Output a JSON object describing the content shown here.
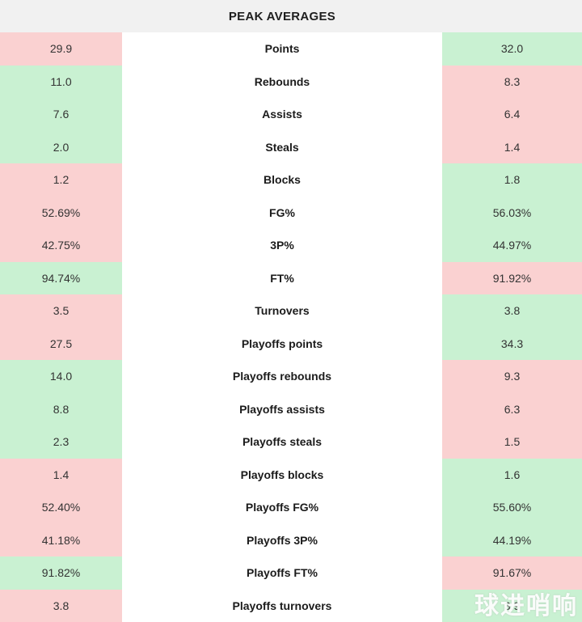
{
  "header": {
    "title": "PEAK AVERAGES"
  },
  "colors": {
    "pink": "#fad1d1",
    "green": "#c9f1d2",
    "header_bg": "#f1f1f1",
    "label_text": "#1b1b1b",
    "value_text": "#333333"
  },
  "chart_data": {
    "type": "table",
    "title": "PEAK AVERAGES",
    "columns": [
      "left_player_value",
      "stat_label",
      "right_player_value"
    ],
    "color_legend": {
      "green": "better value",
      "pink": "worse value"
    },
    "rows": [
      {
        "label": "Points",
        "left": {
          "value": "29.9",
          "color": "pink"
        },
        "right": {
          "value": "32.0",
          "color": "green"
        }
      },
      {
        "label": "Rebounds",
        "left": {
          "value": "11.0",
          "color": "green"
        },
        "right": {
          "value": "8.3",
          "color": "pink"
        }
      },
      {
        "label": "Assists",
        "left": {
          "value": "7.6",
          "color": "green"
        },
        "right": {
          "value": "6.4",
          "color": "pink"
        }
      },
      {
        "label": "Steals",
        "left": {
          "value": "2.0",
          "color": "green"
        },
        "right": {
          "value": "1.4",
          "color": "pink"
        }
      },
      {
        "label": "Blocks",
        "left": {
          "value": "1.2",
          "color": "pink"
        },
        "right": {
          "value": "1.8",
          "color": "green"
        }
      },
      {
        "label": "FG%",
        "left": {
          "value": "52.69%",
          "color": "pink"
        },
        "right": {
          "value": "56.03%",
          "color": "green"
        }
      },
      {
        "label": "3P%",
        "left": {
          "value": "42.75%",
          "color": "pink"
        },
        "right": {
          "value": "44.97%",
          "color": "green"
        }
      },
      {
        "label": "FT%",
        "left": {
          "value": "94.74%",
          "color": "green"
        },
        "right": {
          "value": "91.92%",
          "color": "pink"
        }
      },
      {
        "label": "Turnovers",
        "left": {
          "value": "3.5",
          "color": "pink"
        },
        "right": {
          "value": "3.8",
          "color": "green"
        }
      },
      {
        "label": "Playoffs points",
        "left": {
          "value": "27.5",
          "color": "pink"
        },
        "right": {
          "value": "34.3",
          "color": "green"
        }
      },
      {
        "label": "Playoffs rebounds",
        "left": {
          "value": "14.0",
          "color": "green"
        },
        "right": {
          "value": "9.3",
          "color": "pink"
        }
      },
      {
        "label": "Playoffs assists",
        "left": {
          "value": "8.8",
          "color": "green"
        },
        "right": {
          "value": "6.3",
          "color": "pink"
        }
      },
      {
        "label": "Playoffs steals",
        "left": {
          "value": "2.3",
          "color": "green"
        },
        "right": {
          "value": "1.5",
          "color": "pink"
        }
      },
      {
        "label": "Playoffs blocks",
        "left": {
          "value": "1.4",
          "color": "pink"
        },
        "right": {
          "value": "1.6",
          "color": "green"
        }
      },
      {
        "label": "Playoffs FG%",
        "left": {
          "value": "52.40%",
          "color": "pink"
        },
        "right": {
          "value": "55.60%",
          "color": "green"
        }
      },
      {
        "label": "Playoffs 3P%",
        "left": {
          "value": "41.18%",
          "color": "pink"
        },
        "right": {
          "value": "44.19%",
          "color": "green"
        }
      },
      {
        "label": "Playoffs FT%",
        "left": {
          "value": "91.82%",
          "color": "green"
        },
        "right": {
          "value": "91.67%",
          "color": "pink"
        }
      },
      {
        "label": "Playoffs turnovers",
        "left": {
          "value": "3.8",
          "color": "pink"
        },
        "right": {
          "value": "3.9",
          "color": "green"
        }
      }
    ]
  },
  "watermark": {
    "text": "球进哨响"
  }
}
